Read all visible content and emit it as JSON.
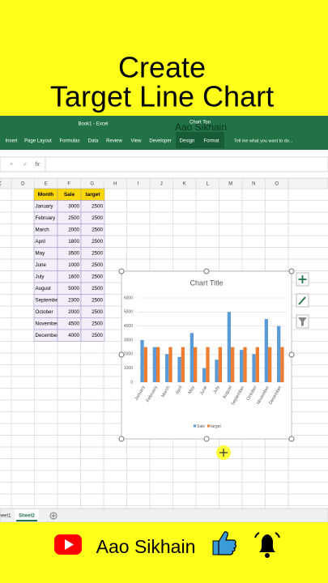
{
  "header": {
    "line1": "Create",
    "line2": "Target Line Chart"
  },
  "excel": {
    "window_title": "Book1 - Excel",
    "context_tab": "Chart Too",
    "watermark": "Aao Sikhain",
    "tabs": [
      "Insert",
      "Page Layout",
      "Formulas",
      "Data",
      "Review",
      "View",
      "Developer",
      "Design",
      "Format"
    ],
    "tell_me": "Tell me what you want to do...",
    "formula_bar": {
      "cancel": "×",
      "enter": "✓",
      "fx": "fx"
    },
    "columns": [
      "C",
      "D",
      "E",
      "F",
      "G",
      "H",
      "I",
      "J",
      "K",
      "L",
      "M",
      "N",
      "O"
    ],
    "sheets": [
      "heet1",
      "Sheet2"
    ]
  },
  "table": {
    "headers": [
      "Month",
      "Sale",
      "target"
    ],
    "rows": [
      [
        "January",
        3000,
        2500
      ],
      [
        "February",
        2500,
        2500
      ],
      [
        "March",
        2000,
        2500
      ],
      [
        "April",
        1800,
        2500
      ],
      [
        "May",
        3500,
        2500
      ],
      [
        "June",
        1000,
        2500
      ],
      [
        "July",
        1600,
        2500
      ],
      [
        "August",
        5000,
        2500
      ],
      [
        "September",
        2300,
        2500
      ],
      [
        "October",
        2000,
        2500
      ],
      [
        "November",
        4500,
        2500
      ],
      [
        "December",
        4000,
        2500
      ]
    ]
  },
  "chart_data": {
    "type": "bar",
    "title": "Chart Title",
    "categories": [
      "January",
      "February",
      "March",
      "April",
      "May",
      "June",
      "July",
      "August",
      "September",
      "October",
      "November",
      "December"
    ],
    "series": [
      {
        "name": "Sale",
        "color": "#5b9bd5",
        "values": [
          3000,
          2500,
          2000,
          1800,
          3500,
          1000,
          1600,
          5000,
          2300,
          2000,
          4500,
          4000
        ]
      },
      {
        "name": "target",
        "color": "#ed7d31",
        "values": [
          2500,
          2500,
          2500,
          2500,
          2500,
          2500,
          2500,
          2500,
          2500,
          2500,
          2500,
          2500
        ]
      }
    ],
    "ylim": [
      0,
      6000
    ],
    "yticks": [
      0,
      1000,
      2000,
      3000,
      4000,
      5000,
      6000
    ],
    "grid": true,
    "legend": "bottom"
  },
  "footer": {
    "channel": "Aao Sikhain"
  }
}
